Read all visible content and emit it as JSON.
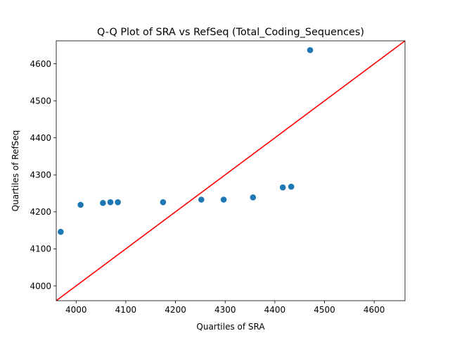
{
  "chart_data": {
    "type": "scatter",
    "title": "Q-Q Plot of SRA vs RefSeq (Total_Coding_Sequences)",
    "xlabel": "Quartiles of SRA",
    "ylabel": "Quartiles of RefSeq",
    "xlim": [
      3960,
      4662
    ],
    "ylim": [
      3960,
      4662
    ],
    "xticks": [
      4000,
      4100,
      4200,
      4300,
      4400,
      4500,
      4600
    ],
    "yticks": [
      4000,
      4100,
      4200,
      4300,
      4400,
      4500,
      4600
    ],
    "grid": false,
    "points": [
      {
        "x": 3969,
        "y": 4146
      },
      {
        "x": 4009,
        "y": 4219
      },
      {
        "x": 4054,
        "y": 4224
      },
      {
        "x": 4069,
        "y": 4226
      },
      {
        "x": 4084,
        "y": 4226
      },
      {
        "x": 4175,
        "y": 4226
      },
      {
        "x": 4252,
        "y": 4233
      },
      {
        "x": 4297,
        "y": 4233
      },
      {
        "x": 4356,
        "y": 4239
      },
      {
        "x": 4416,
        "y": 4266
      },
      {
        "x": 4433,
        "y": 4268
      },
      {
        "x": 4471,
        "y": 4637
      }
    ],
    "reference_line": {
      "x": [
        3960,
        4662
      ],
      "y": [
        3960,
        4662
      ],
      "color": "#ff0000"
    },
    "marker_color": "#1f77b4"
  }
}
